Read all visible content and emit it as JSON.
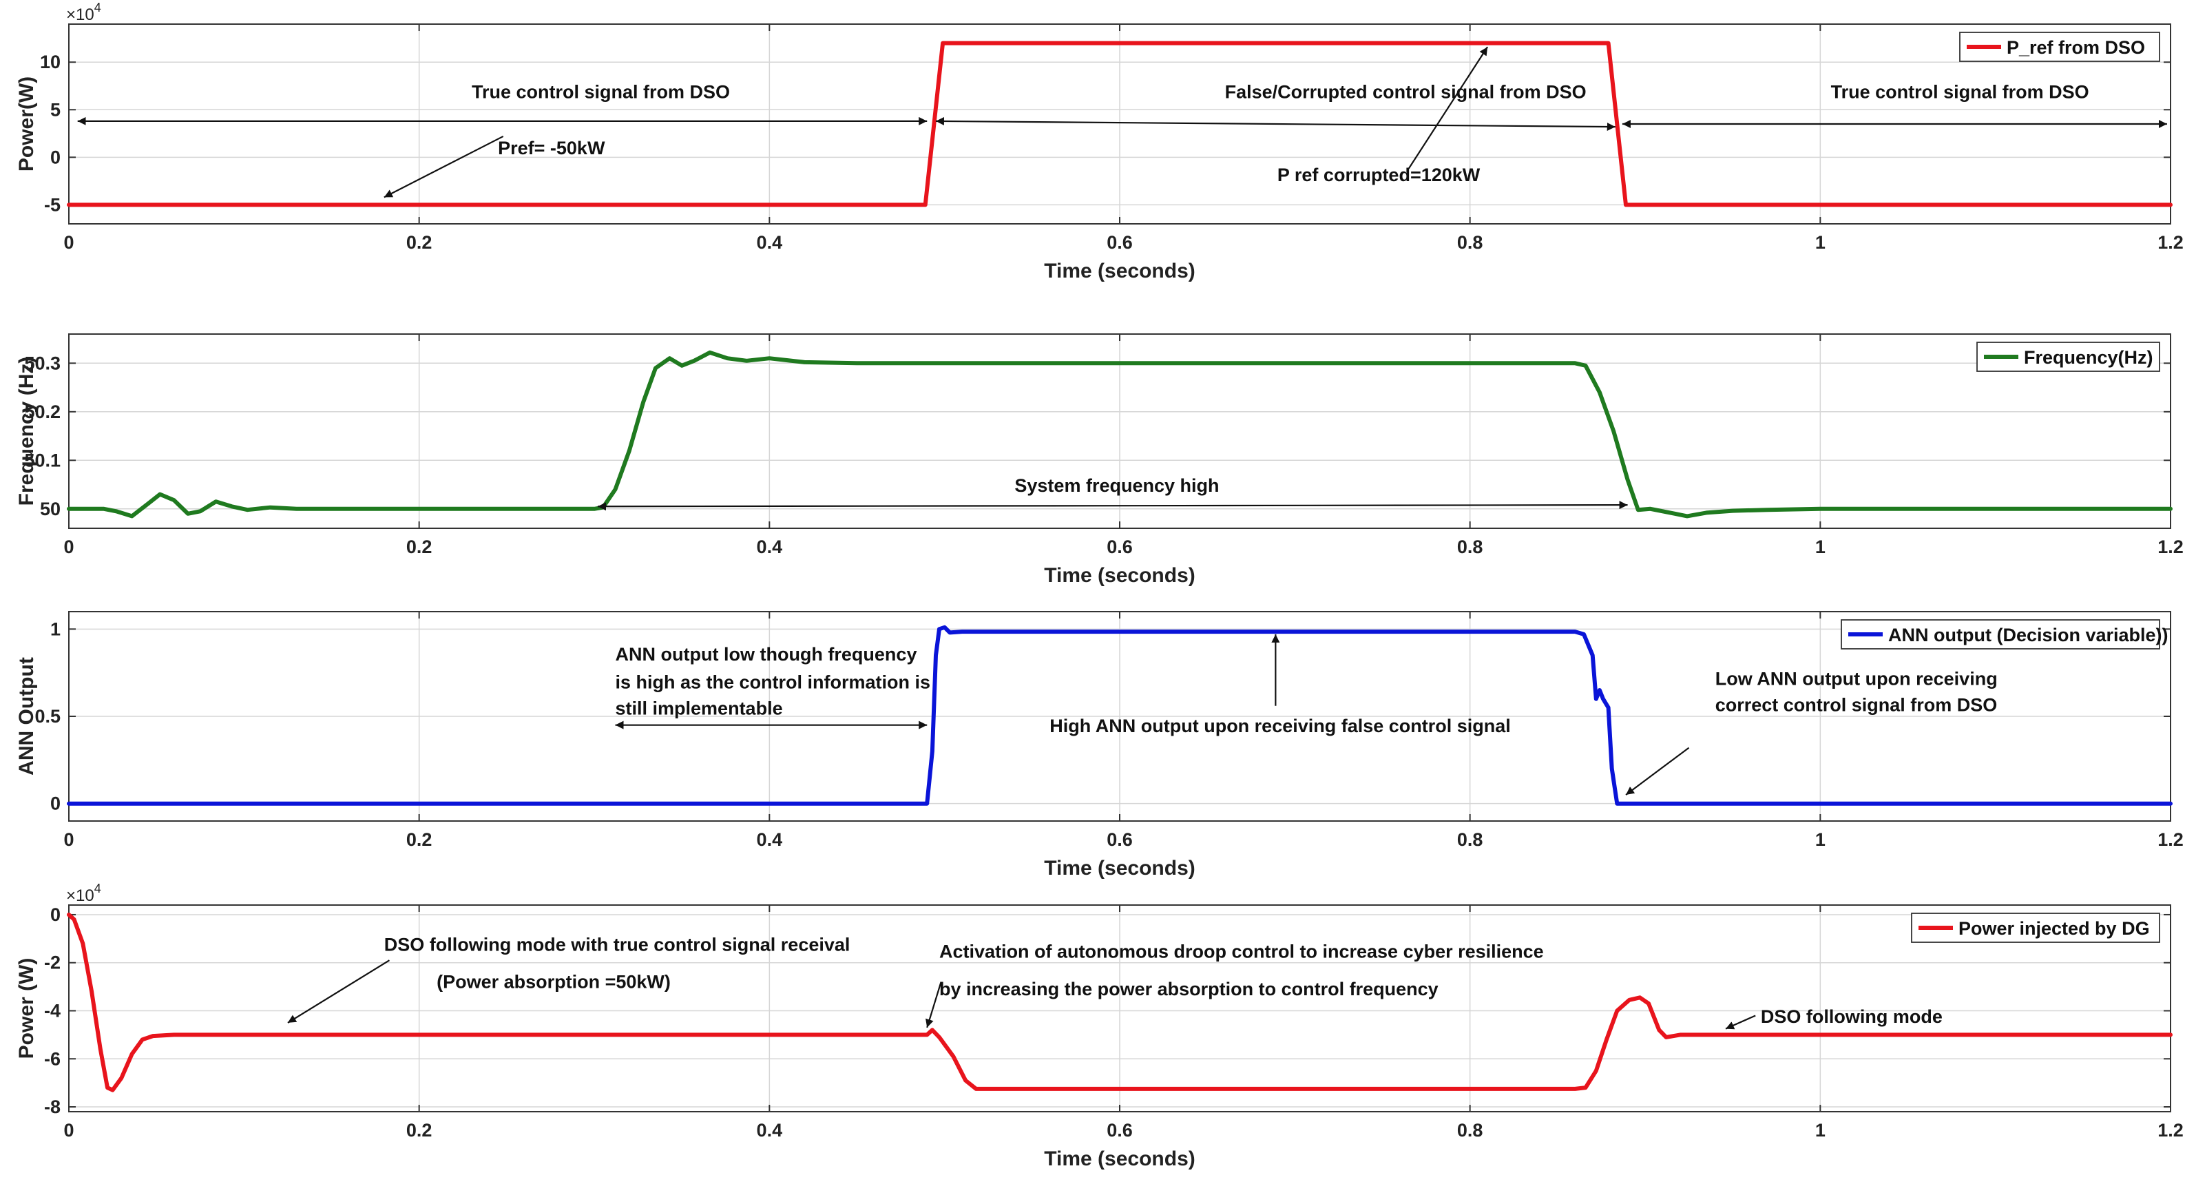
{
  "chart_data": [
    {
      "type": "line",
      "ylabel": "Power(W)",
      "xlabel": "Time (seconds)",
      "xlim": [
        0,
        1.2
      ],
      "ylim": [
        -7,
        14
      ],
      "x_ticks": [
        "0",
        "0.2",
        "0.4",
        "0.6",
        "0.8",
        "1",
        "1.2"
      ],
      "y_ticks": [
        {
          "value": -5,
          "label": "-5"
        },
        {
          "value": 0,
          "label": "0"
        },
        {
          "value": 5,
          "label": "5"
        },
        {
          "value": 10,
          "label": "10"
        }
      ],
      "y_exponent": {
        "base": "×10",
        "power": "4"
      },
      "grid": true,
      "legend_placement": "top-right",
      "series": [
        {
          "name": "P_ref from DSO",
          "color": "#e8141c",
          "points": [
            [
              0,
              -5
            ],
            [
              0.489,
              -5
            ],
            [
              0.499,
              12
            ],
            [
              0.879,
              12
            ],
            [
              0.889,
              -5
            ],
            [
              1.2,
              -5
            ]
          ]
        }
      ],
      "annotations": [
        {
          "text": "True control signal from DSO",
          "x": 0.23,
          "y": 6.2
        },
        {
          "text": "False/Corrupted control signal from DSO",
          "x": 0.66,
          "y": 6.2
        },
        {
          "text": "True control signal from DSO",
          "x": 1.006,
          "y": 6.2
        },
        {
          "text": "Pref= -50kW",
          "x": 0.245,
          "y": 0.3
        },
        {
          "text": "P ref corrupted=120kW",
          "x": 0.69,
          "y": -2.5
        }
      ],
      "arrows": [
        {
          "from": [
            0.49,
            3.8
          ],
          "to": [
            0.005,
            3.8
          ],
          "double": true
        },
        {
          "from": [
            0.495,
            3.8
          ],
          "to": [
            0.883,
            3.2
          ],
          "double": true
        },
        {
          "from": [
            0.887,
            3.5
          ],
          "to": [
            1.198,
            3.5
          ],
          "double": true
        },
        {
          "from": [
            0.248,
            2.2
          ],
          "to": [
            0.18,
            -4.2
          ],
          "double": false
        },
        {
          "from": [
            0.765,
            -1.2
          ],
          "to": [
            0.81,
            11.6
          ],
          "double": false
        }
      ]
    },
    {
      "type": "line",
      "ylabel": "Frequency (Hz)",
      "xlabel": "Time (seconds)",
      "xlim": [
        0,
        1.2
      ],
      "ylim": [
        49.96,
        50.36
      ],
      "x_ticks": [
        "0",
        "0.2",
        "0.4",
        "0.6",
        "0.8",
        "1",
        "1.2"
      ],
      "y_ticks": [
        {
          "value": 50,
          "label": "50"
        },
        {
          "value": 50.1,
          "label": "50.1"
        },
        {
          "value": 50.2,
          "label": "50.2"
        },
        {
          "value": 50.3,
          "label": "50.3"
        }
      ],
      "grid": true,
      "legend_placement": "top-right",
      "series": [
        {
          "name": "Frequency(Hz)",
          "color": "#1f7a1f",
          "points": [
            [
              0,
              50
            ],
            [
              0.02,
              50
            ],
            [
              0.027,
              49.995
            ],
            [
              0.036,
              49.985
            ],
            [
              0.045,
              50.01
            ],
            [
              0.052,
              50.03
            ],
            [
              0.06,
              50.018
            ],
            [
              0.068,
              49.99
            ],
            [
              0.075,
              49.995
            ],
            [
              0.084,
              50.015
            ],
            [
              0.093,
              50.005
            ],
            [
              0.102,
              49.998
            ],
            [
              0.115,
              50.003
            ],
            [
              0.13,
              50
            ],
            [
              0.3,
              50
            ],
            [
              0.305,
              50.003
            ],
            [
              0.312,
              50.04
            ],
            [
              0.32,
              50.12
            ],
            [
              0.328,
              50.22
            ],
            [
              0.335,
              50.29
            ],
            [
              0.343,
              50.31
            ],
            [
              0.35,
              50.295
            ],
            [
              0.357,
              50.305
            ],
            [
              0.366,
              50.322
            ],
            [
              0.376,
              50.31
            ],
            [
              0.387,
              50.305
            ],
            [
              0.4,
              50.31
            ],
            [
              0.42,
              50.302
            ],
            [
              0.45,
              50.3
            ],
            [
              0.86,
              50.3
            ],
            [
              0.866,
              50.295
            ],
            [
              0.874,
              50.24
            ],
            [
              0.882,
              50.16
            ],
            [
              0.89,
              50.06
            ],
            [
              0.896,
              49.998
            ],
            [
              0.903,
              50
            ],
            [
              0.91,
              49.995
            ],
            [
              0.917,
              49.99
            ],
            [
              0.924,
              49.985
            ],
            [
              0.935,
              49.992
            ],
            [
              0.95,
              49.996
            ],
            [
              0.97,
              49.998
            ],
            [
              1.0,
              50
            ],
            [
              1.2,
              50
            ]
          ]
        }
      ],
      "annotations": [
        {
          "text": "System frequency high",
          "x": 0.54,
          "y": 50.035
        }
      ],
      "arrows": [
        {
          "from": [
            0.302,
            50.005
          ],
          "to": [
            0.89,
            50.008
          ],
          "double": true
        }
      ]
    },
    {
      "type": "line",
      "ylabel": "ANN Output",
      "xlabel": "Time (seconds)",
      "xlim": [
        0,
        1.2
      ],
      "ylim": [
        -0.1,
        1.1
      ],
      "x_ticks": [
        "0",
        "0.2",
        "0.4",
        "0.6",
        "0.8",
        "1",
        "1.2"
      ],
      "y_ticks": [
        {
          "value": 0,
          "label": "0"
        },
        {
          "value": 0.5,
          "label": "0.5"
        },
        {
          "value": 1,
          "label": "1"
        }
      ],
      "grid": true,
      "legend_placement": "top-right",
      "series": [
        {
          "name": "ANN output (Decision variable))",
          "color": "#0a14d8",
          "points": [
            [
              0,
              0
            ],
            [
              0.49,
              0
            ],
            [
              0.493,
              0.3
            ],
            [
              0.495,
              0.85
            ],
            [
              0.497,
              1.0
            ],
            [
              0.5,
              1.01
            ],
            [
              0.503,
              0.98
            ],
            [
              0.51,
              0.985
            ],
            [
              0.86,
              0.985
            ],
            [
              0.865,
              0.97
            ],
            [
              0.87,
              0.85
            ],
            [
              0.872,
              0.6
            ],
            [
              0.874,
              0.65
            ],
            [
              0.876,
              0.6
            ],
            [
              0.879,
              0.55
            ],
            [
              0.881,
              0.2
            ],
            [
              0.884,
              0
            ],
            [
              1.2,
              0
            ]
          ]
        }
      ],
      "annotations": [
        {
          "text": "ANN output low though frequency",
          "x": 0.312,
          "y": 0.82
        },
        {
          "text": "is high as the control information is",
          "x": 0.312,
          "y": 0.66
        },
        {
          "text": "still implementable",
          "x": 0.312,
          "y": 0.51
        },
        {
          "text": "High ANN output upon receiving false control signal",
          "x": 0.56,
          "y": 0.41
        },
        {
          "text": "Low ANN output upon receiving",
          "x": 0.94,
          "y": 0.68
        },
        {
          "text": "correct control signal from DSO",
          "x": 0.94,
          "y": 0.53
        }
      ],
      "arrows": [
        {
          "from": [
            0.312,
            0.45
          ],
          "to": [
            0.49,
            0.45
          ],
          "double": true
        },
        {
          "from": [
            0.689,
            0.56
          ],
          "to": [
            0.689,
            0.97
          ],
          "double": false
        },
        {
          "from": [
            0.925,
            0.32
          ],
          "to": [
            0.889,
            0.05
          ],
          "double": false
        }
      ]
    },
    {
      "type": "line",
      "ylabel": "Power (W)",
      "xlabel": "Time (seconds)",
      "xlim": [
        0,
        1.2
      ],
      "ylim": [
        -8.2,
        0.4
      ],
      "x_ticks": [
        "0",
        "0.2",
        "0.4",
        "0.6",
        "0.8",
        "1",
        "1.2"
      ],
      "y_ticks": [
        {
          "value": -8,
          "label": "-8"
        },
        {
          "value": -6,
          "label": "-6"
        },
        {
          "value": -4,
          "label": "-4"
        },
        {
          "value": -2,
          "label": "-2"
        },
        {
          "value": 0,
          "label": "0"
        }
      ],
      "y_exponent": {
        "base": "×10",
        "power": "4"
      },
      "grid": true,
      "legend_placement": "top-right",
      "series": [
        {
          "name": "Power injected by DG",
          "color": "#e8141c",
          "points": [
            [
              0,
              0
            ],
            [
              0.003,
              -0.2
            ],
            [
              0.008,
              -1.2
            ],
            [
              0.013,
              -3.2
            ],
            [
              0.018,
              -5.6
            ],
            [
              0.022,
              -7.2
            ],
            [
              0.025,
              -7.3
            ],
            [
              0.03,
              -6.8
            ],
            [
              0.036,
              -5.8
            ],
            [
              0.042,
              -5.2
            ],
            [
              0.048,
              -5.05
            ],
            [
              0.06,
              -5.0
            ],
            [
              0.49,
              -5.0
            ],
            [
              0.493,
              -4.8
            ],
            [
              0.497,
              -5.1
            ],
            [
              0.505,
              -5.9
            ],
            [
              0.512,
              -6.9
            ],
            [
              0.518,
              -7.25
            ],
            [
              0.53,
              -7.25
            ],
            [
              0.86,
              -7.25
            ],
            [
              0.866,
              -7.2
            ],
            [
              0.872,
              -6.5
            ],
            [
              0.878,
              -5.2
            ],
            [
              0.884,
              -4.0
            ],
            [
              0.891,
              -3.55
            ],
            [
              0.897,
              -3.45
            ],
            [
              0.902,
              -3.7
            ],
            [
              0.908,
              -4.8
            ],
            [
              0.912,
              -5.1
            ],
            [
              0.92,
              -5.0
            ],
            [
              1.2,
              -5.0
            ]
          ]
        }
      ],
      "annotations": [
        {
          "text": "DSO following mode with true control signal receival",
          "x": 0.18,
          "y": -1.5
        },
        {
          "text": "(Power absorption =50kW)",
          "x": 0.21,
          "y": -3.05
        },
        {
          "text": "Activation of autonomous droop control to increase cyber resilience",
          "x": 0.497,
          "y": -1.8
        },
        {
          "text": "by increasing the power absorption to control frequency",
          "x": 0.497,
          "y": -3.35
        },
        {
          "text": "DSO following mode",
          "x": 0.966,
          "y": -4.5
        }
      ],
      "arrows": [
        {
          "from": [
            0.183,
            -1.9
          ],
          "to": [
            0.125,
            -4.5
          ],
          "double": false
        },
        {
          "from": [
            0.498,
            -2.8
          ],
          "to": [
            0.49,
            -4.7
          ],
          "double": false
        },
        {
          "from": [
            0.963,
            -4.2
          ],
          "to": [
            0.946,
            -4.75
          ],
          "double": false
        }
      ]
    }
  ]
}
